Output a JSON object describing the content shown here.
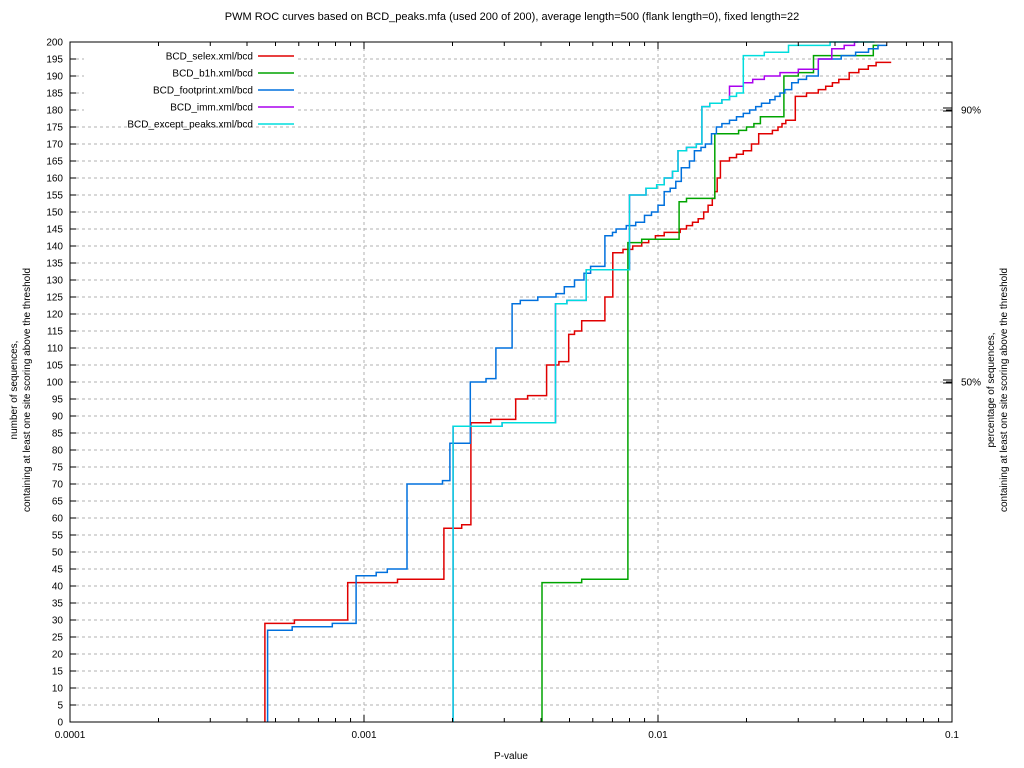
{
  "axes": {
    "x": {
      "ticks": [
        "0.0001",
        "0.001",
        "0.01",
        "0.1"
      ]
    },
    "y": {
      "min": 0,
      "max": 200,
      "step": 5,
      "label_line1": "number of sequences,",
      "label_line2": "containing at least one site scoring above the threshold"
    },
    "y2": {
      "label_line1": "percentage of sequences,",
      "label_line2": "containing at least one site scoring above the threshold",
      "ticks": [
        {
          "label": "90%",
          "value": 180
        },
        {
          "label": "50%",
          "value": 100
        }
      ]
    }
  },
  "chart_data": {
    "type": "line",
    "style": "steps",
    "title": "PWM ROC curves based on BCD_peaks.mfa (used 200 of 200), average length=500 (flank length=0), fixed length=22",
    "xlabel": "P-value",
    "ylabel": "number of sequences, containing at least one site scoring above the threshold",
    "y2label": "percentage of sequences, containing at least one site scoring above the threshold",
    "xscale": "log",
    "xlim": [
      0.0001,
      0.1
    ],
    "ylim": [
      0,
      200
    ],
    "grid": true,
    "legend_position": "top-left",
    "series": [
      {
        "id": "selex",
        "name": "BCD_selex.xml/bcd",
        "color": "#e00000",
        "start_y": 0,
        "end_x": 0.0621,
        "points": [
          [
            0.00046,
            29
          ],
          [
            0.00058,
            30
          ],
          [
            0.00088,
            41
          ],
          [
            0.0013,
            42
          ],
          [
            0.00187,
            57
          ],
          [
            0.00215,
            58
          ],
          [
            0.00231,
            88
          ],
          [
            0.0027,
            89
          ],
          [
            0.00328,
            95
          ],
          [
            0.0036,
            96
          ],
          [
            0.00418,
            105
          ],
          [
            0.0046,
            106
          ],
          [
            0.00497,
            114
          ],
          [
            0.0052,
            115
          ],
          [
            0.0055,
            118
          ],
          [
            0.0066,
            125
          ],
          [
            0.00702,
            138
          ],
          [
            0.0076,
            139
          ],
          [
            0.0082,
            140
          ],
          [
            0.0088,
            141
          ],
          [
            0.0093,
            142
          ],
          [
            0.0098,
            143
          ],
          [
            0.0105,
            144
          ],
          [
            0.0119,
            145
          ],
          [
            0.0125,
            146
          ],
          [
            0.0131,
            147
          ],
          [
            0.0137,
            148
          ],
          [
            0.0143,
            150
          ],
          [
            0.0148,
            152
          ],
          [
            0.0153,
            154
          ],
          [
            0.0156,
            156
          ],
          [
            0.0159,
            160
          ],
          [
            0.0163,
            165
          ],
          [
            0.0175,
            166
          ],
          [
            0.0185,
            167
          ],
          [
            0.0195,
            168
          ],
          [
            0.0208,
            170
          ],
          [
            0.022,
            173
          ],
          [
            0.0245,
            174
          ],
          [
            0.0256,
            175
          ],
          [
            0.0264,
            176
          ],
          [
            0.0272,
            177
          ],
          [
            0.0293,
            184
          ],
          [
            0.032,
            185
          ],
          [
            0.0351,
            186
          ],
          [
            0.0372,
            187
          ],
          [
            0.0392,
            188
          ],
          [
            0.0412,
            189
          ],
          [
            0.0447,
            191
          ],
          [
            0.0482,
            192
          ],
          [
            0.0519,
            193
          ],
          [
            0.0552,
            194
          ]
        ]
      },
      {
        "id": "b1h",
        "name": "BCD_b1h.xml/bcd",
        "color": "#00a400",
        "start_y": 0,
        "end_x": 0.0566,
        "points": [
          [
            0.00403,
            41
          ],
          [
            0.0055,
            42
          ],
          [
            0.0079,
            141
          ],
          [
            0.0088,
            142
          ],
          [
            0.0118,
            153
          ],
          [
            0.0125,
            154
          ],
          [
            0.0156,
            173
          ],
          [
            0.0188,
            174
          ],
          [
            0.02,
            175
          ],
          [
            0.0212,
            176
          ],
          [
            0.0223,
            178
          ],
          [
            0.0268,
            190
          ],
          [
            0.03,
            191
          ],
          [
            0.0338,
            196
          ],
          [
            0.054,
            199
          ]
        ]
      },
      {
        "id": "footprint",
        "name": "BCD_footprint.xml/bcd",
        "color": "#0070dd",
        "start_y": 0,
        "end_x": 0.06,
        "points": [
          [
            0.00047,
            27
          ],
          [
            0.00057,
            28
          ],
          [
            0.00078,
            29
          ],
          [
            0.00094,
            43
          ],
          [
            0.0011,
            44
          ],
          [
            0.0012,
            45
          ],
          [
            0.0014,
            70
          ],
          [
            0.00185,
            71
          ],
          [
            0.00196,
            82
          ],
          [
            0.0023,
            100
          ],
          [
            0.0026,
            101
          ],
          [
            0.00281,
            110
          ],
          [
            0.00319,
            123
          ],
          [
            0.0034,
            124
          ],
          [
            0.0039,
            125
          ],
          [
            0.0045,
            126
          ],
          [
            0.0048,
            128
          ],
          [
            0.0052,
            130
          ],
          [
            0.0056,
            132
          ],
          [
            0.0059,
            134
          ],
          [
            0.0066,
            143
          ],
          [
            0.007,
            144
          ],
          [
            0.0072,
            145
          ],
          [
            0.0078,
            146
          ],
          [
            0.0084,
            147
          ],
          [
            0.009,
            149
          ],
          [
            0.0095,
            150
          ],
          [
            0.01,
            152
          ],
          [
            0.0105,
            156
          ],
          [
            0.011,
            157
          ],
          [
            0.0115,
            159
          ],
          [
            0.012,
            163
          ],
          [
            0.0128,
            165
          ],
          [
            0.0133,
            168
          ],
          [
            0.014,
            169
          ],
          [
            0.0145,
            170
          ],
          [
            0.0152,
            173
          ],
          [
            0.0158,
            175
          ],
          [
            0.0165,
            176
          ],
          [
            0.0175,
            177
          ],
          [
            0.0185,
            178
          ],
          [
            0.0195,
            179
          ],
          [
            0.0205,
            180
          ],
          [
            0.0215,
            181
          ],
          [
            0.0225,
            182
          ],
          [
            0.024,
            183
          ],
          [
            0.025,
            184
          ],
          [
            0.026,
            185
          ],
          [
            0.027,
            186
          ],
          [
            0.0285,
            188
          ],
          [
            0.03,
            189
          ],
          [
            0.032,
            190
          ],
          [
            0.0351,
            195
          ],
          [
            0.042,
            196
          ],
          [
            0.047,
            197
          ],
          [
            0.052,
            198
          ],
          [
            0.056,
            199
          ]
        ]
      },
      {
        "id": "imm",
        "name": "BCD_imm.xml/bcd",
        "color": "#aa00ee",
        "start_y": 0,
        "end_x": 0.048,
        "points": [
          [
            0.00201,
            87
          ],
          [
            0.00295,
            88
          ],
          [
            0.00448,
            123
          ],
          [
            0.0049,
            124
          ],
          [
            0.0057,
            133
          ],
          [
            0.008,
            155
          ],
          [
            0.0091,
            157
          ],
          [
            0.0099,
            158
          ],
          [
            0.0105,
            160
          ],
          [
            0.0112,
            162
          ],
          [
            0.0117,
            168
          ],
          [
            0.0125,
            169
          ],
          [
            0.0135,
            170
          ],
          [
            0.0141,
            181
          ],
          [
            0.015,
            182
          ],
          [
            0.0165,
            183
          ],
          [
            0.0175,
            187
          ],
          [
            0.0195,
            188
          ],
          [
            0.021,
            189
          ],
          [
            0.023,
            190
          ],
          [
            0.026,
            191
          ],
          [
            0.03,
            192
          ],
          [
            0.0351,
            195
          ],
          [
            0.039,
            198
          ],
          [
            0.043,
            199
          ],
          [
            0.0466,
            200
          ]
        ]
      },
      {
        "id": "except_peaks",
        "name": "BCD_except_peaks.xml/bcd",
        "color": "#00dddd",
        "start_y": 0,
        "end_x": 0.0545,
        "points": [
          [
            0.00201,
            87
          ],
          [
            0.00295,
            88
          ],
          [
            0.00448,
            123
          ],
          [
            0.0049,
            124
          ],
          [
            0.0057,
            133
          ],
          [
            0.008,
            155
          ],
          [
            0.0091,
            157
          ],
          [
            0.0099,
            158
          ],
          [
            0.0105,
            160
          ],
          [
            0.0112,
            162
          ],
          [
            0.0117,
            168
          ],
          [
            0.0125,
            169
          ],
          [
            0.0135,
            170
          ],
          [
            0.0141,
            181
          ],
          [
            0.015,
            182
          ],
          [
            0.0165,
            183
          ],
          [
            0.0175,
            184
          ],
          [
            0.0185,
            185
          ],
          [
            0.0195,
            196
          ],
          [
            0.023,
            197
          ],
          [
            0.0278,
            199
          ],
          [
            0.0385,
            200
          ]
        ]
      }
    ]
  }
}
